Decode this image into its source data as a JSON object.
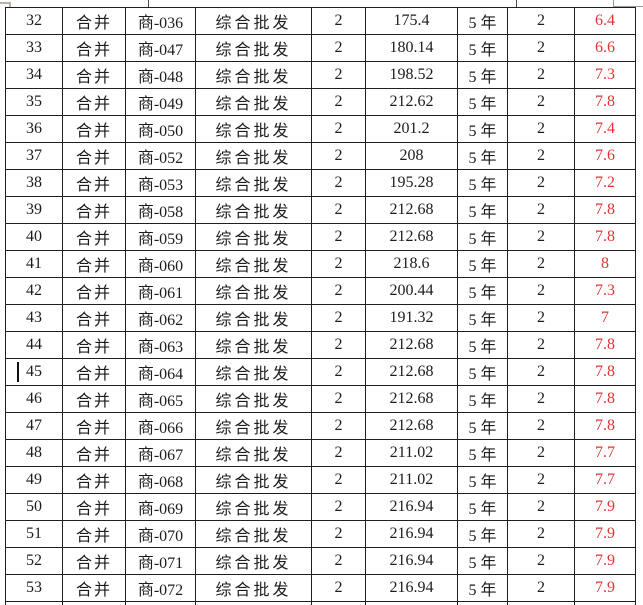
{
  "table": {
    "column_keys": [
      "index",
      "merge",
      "code",
      "category",
      "qty",
      "amount",
      "term",
      "count",
      "rate"
    ],
    "rows": [
      [
        "32",
        "合并",
        "商-036",
        "综合批发",
        "2",
        "175.4",
        "5 年",
        "2",
        "6.4"
      ],
      [
        "33",
        "合并",
        "商-047",
        "综合批发",
        "2",
        "180.14",
        "5 年",
        "2",
        "6.6"
      ],
      [
        "34",
        "合并",
        "商-048",
        "综合批发",
        "2",
        "198.52",
        "5 年",
        "2",
        "7.3"
      ],
      [
        "35",
        "合并",
        "商-049",
        "综合批发",
        "2",
        "212.62",
        "5 年",
        "2",
        "7.8"
      ],
      [
        "36",
        "合并",
        "商-050",
        "综合批发",
        "2",
        "201.2",
        "5 年",
        "2",
        "7.4"
      ],
      [
        "37",
        "合并",
        "商-052",
        "综合批发",
        "2",
        "208",
        "5 年",
        "2",
        "7.6"
      ],
      [
        "38",
        "合并",
        "商-053",
        "综合批发",
        "2",
        "195.28",
        "5 年",
        "2",
        "7.2"
      ],
      [
        "39",
        "合并",
        "商-058",
        "综合批发",
        "2",
        "212.68",
        "5 年",
        "2",
        "7.8"
      ],
      [
        "40",
        "合并",
        "商-059",
        "综合批发",
        "2",
        "212.68",
        "5 年",
        "2",
        "7.8"
      ],
      [
        "41",
        "合并",
        "商-060",
        "综合批发",
        "2",
        "218.6",
        "5 年",
        "2",
        "8"
      ],
      [
        "42",
        "合并",
        "商-061",
        "综合批发",
        "2",
        "200.44",
        "5 年",
        "2",
        "7.3"
      ],
      [
        "43",
        "合并",
        "商-062",
        "综合批发",
        "2",
        "191.32",
        "5 年",
        "2",
        "7"
      ],
      [
        "44",
        "合并",
        "商-063",
        "综合批发",
        "2",
        "212.68",
        "5 年",
        "2",
        "7.8"
      ],
      [
        "45",
        "合并",
        "商-064",
        "综合批发",
        "2",
        "212.68",
        "5 年",
        "2",
        "7.8"
      ],
      [
        "46",
        "合并",
        "商-065",
        "综合批发",
        "2",
        "212.68",
        "5 年",
        "2",
        "7.8"
      ],
      [
        "47",
        "合并",
        "商-066",
        "综合批发",
        "2",
        "212.68",
        "5 年",
        "2",
        "7.8"
      ],
      [
        "48",
        "合并",
        "商-067",
        "综合批发",
        "2",
        "211.02",
        "5 年",
        "2",
        "7.7"
      ],
      [
        "49",
        "合并",
        "商-068",
        "综合批发",
        "2",
        "211.02",
        "5 年",
        "2",
        "7.7"
      ],
      [
        "50",
        "合并",
        "商-069",
        "综合批发",
        "2",
        "216.94",
        "5 年",
        "2",
        "7.9"
      ],
      [
        "51",
        "合并",
        "商-070",
        "综合批发",
        "2",
        "216.94",
        "5 年",
        "2",
        "7.9"
      ],
      [
        "52",
        "合并",
        "商-071",
        "综合批发",
        "2",
        "216.94",
        "5 年",
        "2",
        "7.9"
      ],
      [
        "53",
        "合并",
        "商-072",
        "综合批发",
        "2",
        "216.94",
        "5 年",
        "2",
        "7.9"
      ]
    ],
    "caret_row_index": 13,
    "rate_color": "#e03434",
    "border_color": "#1f1f1f"
  }
}
